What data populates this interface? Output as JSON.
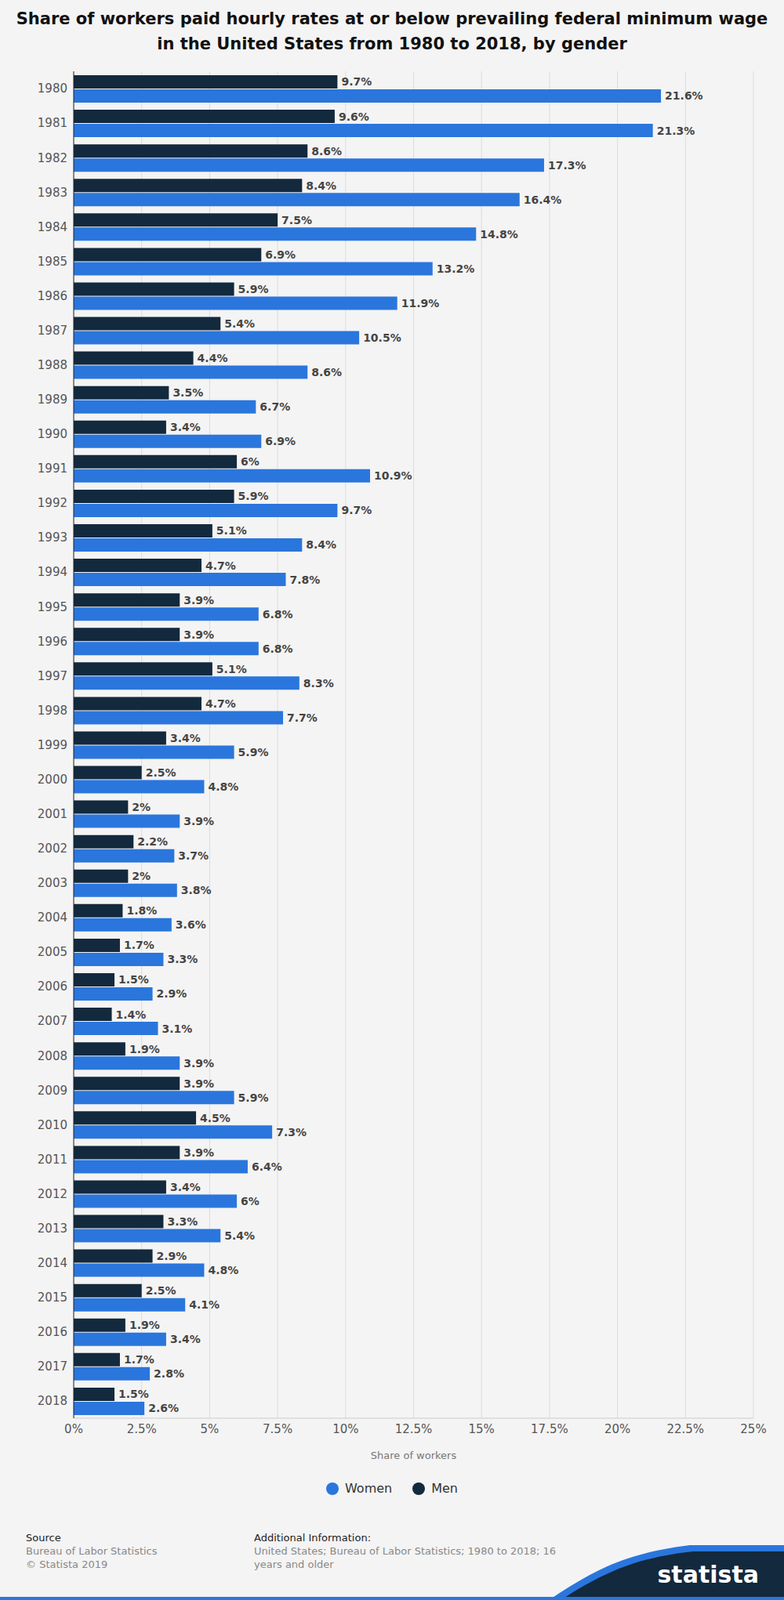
{
  "chart_data": {
    "type": "bar",
    "title": "Share of workers paid hourly rates at or below prevailing federal minimum wage in the United States from 1980 to 2018, by gender",
    "xlabel": "Share of workers",
    "orientation": "horizontal",
    "grid": true,
    "legend": "bottom",
    "data_labels": true,
    "categories": [
      "1980",
      "1981",
      "1982",
      "1983",
      "1984",
      "1985",
      "1986",
      "1987",
      "1988",
      "1989",
      "1990",
      "1991",
      "1992",
      "1993",
      "1994",
      "1995",
      "1996",
      "1997",
      "1998",
      "1999",
      "2000",
      "2001",
      "2002",
      "2003",
      "2004",
      "2005",
      "2006",
      "2007",
      "2008",
      "2009",
      "2010",
      "2011",
      "2012",
      "2013",
      "2014",
      "2015",
      "2016",
      "2017",
      "2018"
    ],
    "series": [
      {
        "name": "Women",
        "color": "#2a76dd",
        "values": [
          21.6,
          21.3,
          17.3,
          16.4,
          14.8,
          13.2,
          11.9,
          10.5,
          8.6,
          6.7,
          6.9,
          10.9,
          9.7,
          8.4,
          7.8,
          6.8,
          6.8,
          8.3,
          7.7,
          5.9,
          4.8,
          3.9,
          3.7,
          3.8,
          3.6,
          3.3,
          2.9,
          3.1,
          3.9,
          5.9,
          7.3,
          6.4,
          6,
          5.4,
          4.8,
          4.1,
          3.4,
          2.8,
          2.6
        ],
        "value_labels": [
          "21.6%",
          "21.3%",
          "17.3%",
          "16.4%",
          "14.8%",
          "13.2%",
          "11.9%",
          "10.5%",
          "8.6%",
          "6.7%",
          "6.9%",
          "10.9%",
          "9.7%",
          "8.4%",
          "7.8%",
          "6.8%",
          "6.8%",
          "8.3%",
          "7.7%",
          "5.9%",
          "4.8%",
          "3.9%",
          "3.7%",
          "3.8%",
          "3.6%",
          "3.3%",
          "2.9%",
          "3.1%",
          "3.9%",
          "5.9%",
          "7.3%",
          "6.4%",
          "6%",
          "5.4%",
          "4.8%",
          "4.1%",
          "3.4%",
          "2.8%",
          "2.6%"
        ]
      },
      {
        "name": "Men",
        "color": "#13293d",
        "values": [
          9.7,
          9.6,
          8.6,
          8.4,
          7.5,
          6.9,
          5.9,
          5.4,
          4.4,
          3.5,
          3.4,
          6,
          5.9,
          5.1,
          4.7,
          3.9,
          3.9,
          5.1,
          4.7,
          3.4,
          2.5,
          2,
          2.2,
          2,
          1.8,
          1.7,
          1.5,
          1.4,
          1.9,
          3.9,
          4.5,
          3.9,
          3.4,
          3.3,
          2.9,
          2.5,
          1.9,
          1.7,
          1.5
        ],
        "value_labels": [
          "9.7%",
          "9.6%",
          "8.6%",
          "8.4%",
          "7.5%",
          "6.9%",
          "5.9%",
          "5.4%",
          "4.4%",
          "3.5%",
          "3.4%",
          "6%",
          "5.9%",
          "5.1%",
          "4.7%",
          "3.9%",
          "3.9%",
          "5.1%",
          "4.7%",
          "3.4%",
          "2.5%",
          "2%",
          "2.2%",
          "2%",
          "1.8%",
          "1.7%",
          "1.5%",
          "1.4%",
          "1.9%",
          "3.9%",
          "4.5%",
          "3.9%",
          "3.4%",
          "3.3%",
          "2.9%",
          "2.5%",
          "1.9%",
          "1.7%",
          "1.5%"
        ]
      }
    ],
    "xlim": [
      0,
      25
    ],
    "xticks": [
      {
        "value": 0,
        "label": "0%"
      },
      {
        "value": 2.5,
        "label": "2.5%"
      },
      {
        "value": 5,
        "label": "5%"
      },
      {
        "value": 7.5,
        "label": "7.5%"
      },
      {
        "value": 10,
        "label": "10%"
      },
      {
        "value": 12.5,
        "label": "12.5%"
      },
      {
        "value": 15,
        "label": "15%"
      },
      {
        "value": 17.5,
        "label": "17.5%"
      },
      {
        "value": 20,
        "label": "20%"
      },
      {
        "value": 22.5,
        "label": "22.5%"
      },
      {
        "value": 25,
        "label": "25%"
      }
    ]
  },
  "footer": {
    "source_title": "Source",
    "source_lines": [
      "Bureau of Labor Statistics",
      "© Statista 2019"
    ],
    "info_title": "Additional Information:",
    "info_text": "United States; Bureau of Labor Statistics; 1980 to 2018; 16 years and older",
    "brand": "statista"
  }
}
